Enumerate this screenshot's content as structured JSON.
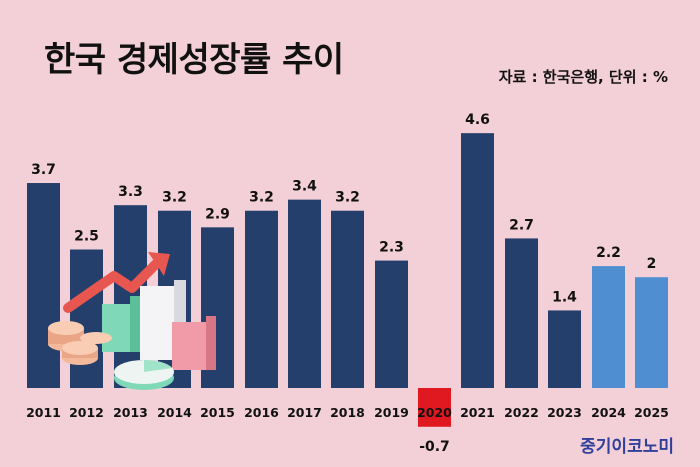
{
  "title": "한국 경제성장률 추이",
  "source": "자료 : 한국은행, 단위 : %",
  "brand": "중기이코노미",
  "colors": {
    "background": "#f3d0d8",
    "actual": "#243f6b",
    "forecast": "#4f8fd1",
    "negative": "#e0181f"
  },
  "chart_data": {
    "type": "bar",
    "categories": [
      "2011",
      "2012",
      "2013",
      "2014",
      "2015",
      "2016",
      "2017",
      "2018",
      "2019",
      "2020",
      "2021",
      "2022",
      "2023",
      "2024",
      "2025"
    ],
    "values": [
      3.7,
      2.5,
      3.3,
      3.2,
      2.9,
      3.2,
      3.4,
      3.2,
      2.3,
      -0.7,
      4.6,
      2.7,
      1.4,
      2.2,
      2
    ],
    "value_labels": [
      "3.7",
      "2.5",
      "3.3",
      "3.2",
      "2.9",
      "3.2",
      "3.4",
      "3.2",
      "2.3",
      "-0.7",
      "4.6",
      "2.7",
      "1.4",
      "2.2",
      "2"
    ],
    "bar_kind": [
      "actual",
      "actual",
      "actual",
      "actual",
      "actual",
      "actual",
      "actual",
      "actual",
      "actual",
      "negative",
      "actual",
      "actual",
      "actual",
      "forecast",
      "forecast"
    ],
    "title": "한국 경제성장률 추이",
    "xlabel": "",
    "ylabel": "",
    "grid": false,
    "legend": "none"
  }
}
